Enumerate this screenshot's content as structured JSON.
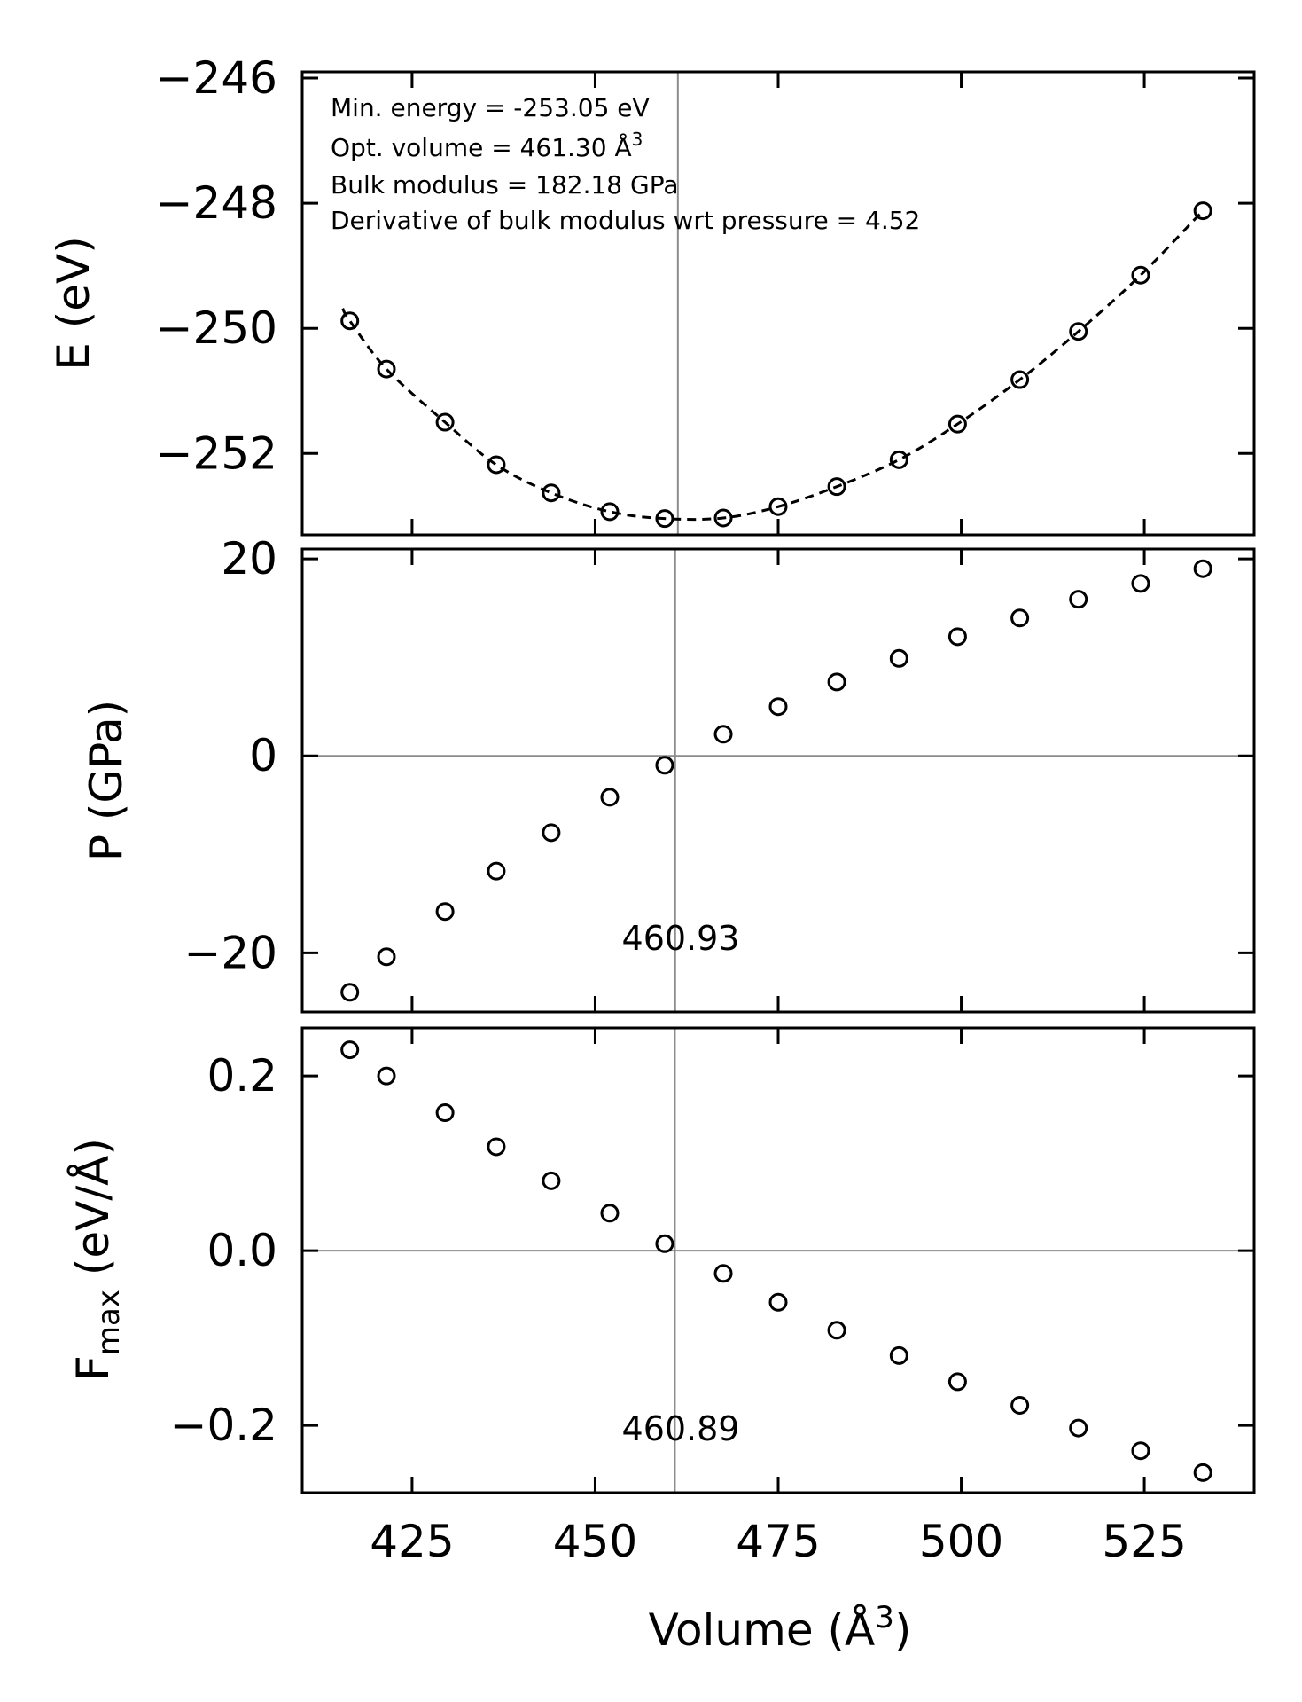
{
  "chart_data": [
    {
      "type": "scatter",
      "name": "energy",
      "ylabel": "E (eV)",
      "xlim": [
        410,
        540
      ],
      "ylim": [
        -253.3,
        -245.9
      ],
      "yticks": [
        -246,
        -248,
        -250,
        -252
      ],
      "ytick_labels": [
        "−246",
        "−248",
        "−250",
        "−252"
      ],
      "x": [
        416.5,
        421.5,
        429.5,
        436.5,
        444.0,
        452.0,
        459.5,
        467.5,
        475.0,
        483.0,
        491.5,
        499.5,
        508.0,
        516.0,
        524.5,
        533.0
      ],
      "values": [
        -249.88,
        -250.65,
        -251.5,
        -252.18,
        -252.63,
        -252.93,
        -253.04,
        -253.03,
        -252.85,
        -252.53,
        -252.1,
        -251.53,
        -250.82,
        -250.05,
        -249.15,
        -248.12
      ],
      "fit": "Birch-Murnaghan (dashed)",
      "vline_x": 461.3,
      "annotations": [
        "Min. energy = -253.05 eV",
        "Opt. volume = 461.30 Å",
        "Bulk modulus = 182.18 GPa",
        "Derivative of bulk modulus wrt pressure = 4.52"
      ],
      "annotation_sup": "3"
    },
    {
      "type": "scatter",
      "name": "pressure",
      "ylabel": "P (GPa)",
      "xlim": [
        410,
        540
      ],
      "ylim": [
        -26,
        21
      ],
      "yticks": [
        20,
        0,
        -20
      ],
      "ytick_labels": [
        "20",
        "0",
        "−20"
      ],
      "x": [
        416.5,
        421.5,
        429.5,
        436.5,
        444.0,
        452.0,
        459.5,
        467.5,
        475.0,
        483.0,
        491.5,
        499.5,
        508.0,
        516.0,
        524.5,
        533.0
      ],
      "values": [
        -24.0,
        -20.4,
        -15.8,
        -11.7,
        -7.8,
        -4.2,
        -0.95,
        2.2,
        5.0,
        7.5,
        9.9,
        12.1,
        14.0,
        15.9,
        17.5,
        19.0
      ],
      "vline_x": 460.93,
      "vline_label": "460.93",
      "hline_y": 0
    },
    {
      "type": "scatter",
      "name": "max-force",
      "ylabel_main": "F",
      "ylabel_sub": "max",
      "ylabel_rest": " (eV/Å)",
      "xlim": [
        410,
        540
      ],
      "ylim": [
        -0.277,
        0.255
      ],
      "yticks": [
        0.2,
        0.0,
        -0.2
      ],
      "ytick_labels": [
        "0.2",
        "0.0",
        "−0.2"
      ],
      "x": [
        416.5,
        421.5,
        429.5,
        436.5,
        444.0,
        452.0,
        459.5,
        467.5,
        475.0,
        483.0,
        491.5,
        499.5,
        508.0,
        516.0,
        524.5,
        533.0
      ],
      "values": [
        0.23,
        0.2,
        0.158,
        0.119,
        0.08,
        0.043,
        0.008,
        -0.026,
        -0.059,
        -0.091,
        -0.12,
        -0.15,
        -0.177,
        -0.203,
        -0.229,
        -0.254
      ],
      "vline_x": 460.89,
      "vline_label": "460.89",
      "hline_y": 0
    }
  ],
  "xaxis": {
    "xticks": [
      425,
      450,
      475,
      500,
      525
    ],
    "xtick_labels": [
      "425",
      "450",
      "475",
      "500",
      "525"
    ],
    "xlabel_main": "Volume (Å",
    "xlabel_sup": "3",
    "xlabel_close": ")"
  }
}
